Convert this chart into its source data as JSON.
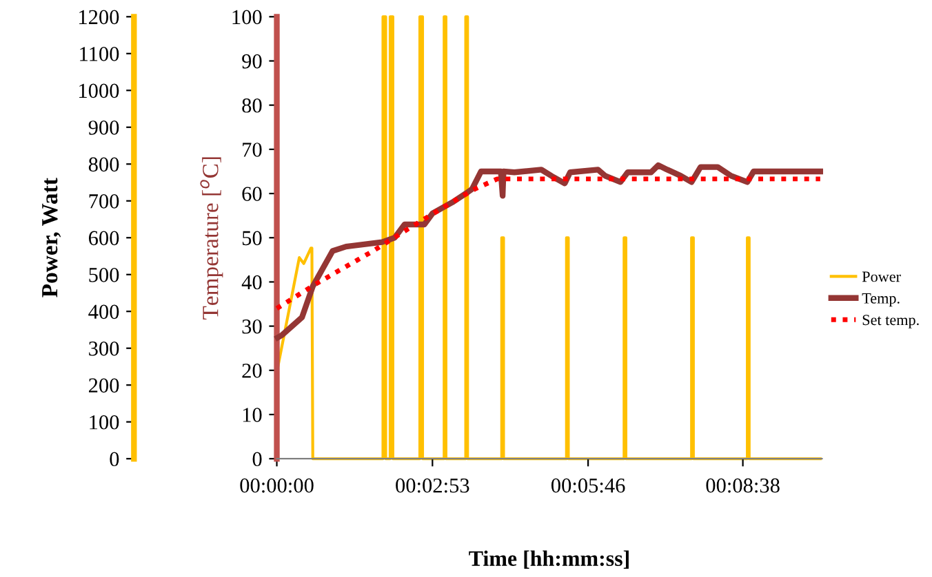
{
  "chart_data": {
    "type": "line",
    "xlabel": "Time [hh:mm:ss]",
    "ylabel": "Temperature [$^{o}$C]",
    "y2label": "Power, Watt",
    "xlim": [
      0,
      606
    ],
    "xticks": [
      {
        "value": 0,
        "label": "00:00:00"
      },
      {
        "value": 173,
        "label": "00:02:53"
      },
      {
        "value": 346,
        "label": "00:05:46"
      },
      {
        "value": 518,
        "label": "00:08:38"
      }
    ],
    "ylim": [
      0,
      100
    ],
    "yticks": [
      0,
      10,
      20,
      30,
      40,
      50,
      60,
      70,
      80,
      90,
      100
    ],
    "y2lim": [
      0,
      1200
    ],
    "y2ticks": [
      0,
      100,
      200,
      300,
      400,
      500,
      600,
      700,
      800,
      900,
      1000,
      1100,
      1200
    ],
    "grid": false,
    "legend": "right",
    "marker": "none",
    "series": [
      {
        "name": "Power",
        "color": "#ffc000",
        "axis": "y2",
        "line_style": "solid",
        "x": [
          0,
          13,
          25,
          30,
          33,
          38,
          39,
          40,
          118,
          118,
          121,
          121,
          126,
          126,
          129,
          129,
          159,
          159,
          162,
          162,
          186,
          186,
          188,
          188,
          210,
          210,
          212,
          212,
          250,
          250,
          252,
          252,
          322,
          322,
          324,
          324,
          386,
          386,
          388,
          388,
          461,
          461,
          463,
          463,
          523,
          523,
          525,
          525,
          604
        ],
        "values": [
          235,
          396,
          546,
          530,
          546,
          572,
          572,
          0,
          0,
          1200,
          1200,
          0,
          0,
          1200,
          1200,
          0,
          0,
          1200,
          1200,
          0,
          0,
          1200,
          1200,
          0,
          0,
          1200,
          1200,
          0,
          0,
          600,
          600,
          0,
          0,
          600,
          600,
          0,
          0,
          600,
          600,
          0,
          0,
          600,
          600,
          0,
          0,
          600,
          600,
          0,
          0
        ]
      },
      {
        "name": "Temp.",
        "color": "#943634",
        "line_style": "solid",
        "x": [
          1,
          6,
          28,
          40,
          62,
          77,
          117,
          131,
          142,
          164,
          173,
          195,
          210,
          217,
          227,
          249,
          251,
          252,
          264,
          294,
          306,
          320,
          326,
          357,
          365,
          382,
          390,
          416,
          424,
          434,
          449,
          461,
          471,
          490,
          505,
          523,
          530,
          604
        ],
        "values": [
          27.4,
          28,
          32,
          39,
          47,
          48,
          49,
          50,
          53,
          53,
          55.5,
          58,
          60,
          61,
          65,
          65,
          59.5,
          65,
          64.8,
          65.4,
          63.9,
          62.3,
          64.8,
          65.4,
          64,
          62.6,
          64.8,
          64.8,
          66.4,
          65.4,
          64,
          62.6,
          66,
          66,
          64,
          62.6,
          65,
          65
        ]
      },
      {
        "name": "Set temp.",
        "color": "#ff0000",
        "line_style": "dotted",
        "x": [
          0,
          43,
          107,
          146,
          191,
          220,
          245,
          604
        ],
        "values": [
          34,
          39.5,
          47,
          52,
          57.6,
          61,
          63.3,
          63.3
        ]
      }
    ]
  }
}
